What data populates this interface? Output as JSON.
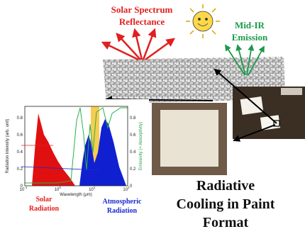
{
  "header": {
    "reflect_title": [
      "Solar Spectrum",
      "Reflectance"
    ],
    "emission_title": [
      "Mid-IR",
      "Emission"
    ]
  },
  "inset_chart": {
    "x_label": "Wavelength (μm)",
    "y_label": "Radiation Intensity (arb. unit)",
    "y2_label": "Emissivity (= Absorptivity)",
    "y_ticks": [
      "0",
      "0.2",
      "0.4",
      "0.6",
      "0.8"
    ],
    "y2_ticks": [
      "0",
      "0.2",
      "0.4",
      "0.6",
      "0.8"
    ],
    "x_ticks": [
      {
        "base": "10",
        "exp": "-1"
      },
      {
        "base": "10",
        "exp": "0"
      },
      {
        "base": "10",
        "exp": "1"
      },
      {
        "base": "10",
        "exp": "2"
      }
    ]
  },
  "labels": {
    "solar": [
      "Solar",
      "Radiation"
    ],
    "atmospheric": [
      "Atmospheric",
      "Radiation"
    ]
  },
  "caption": [
    "Radiative",
    "Cooling in Paint",
    "Format"
  ]
}
